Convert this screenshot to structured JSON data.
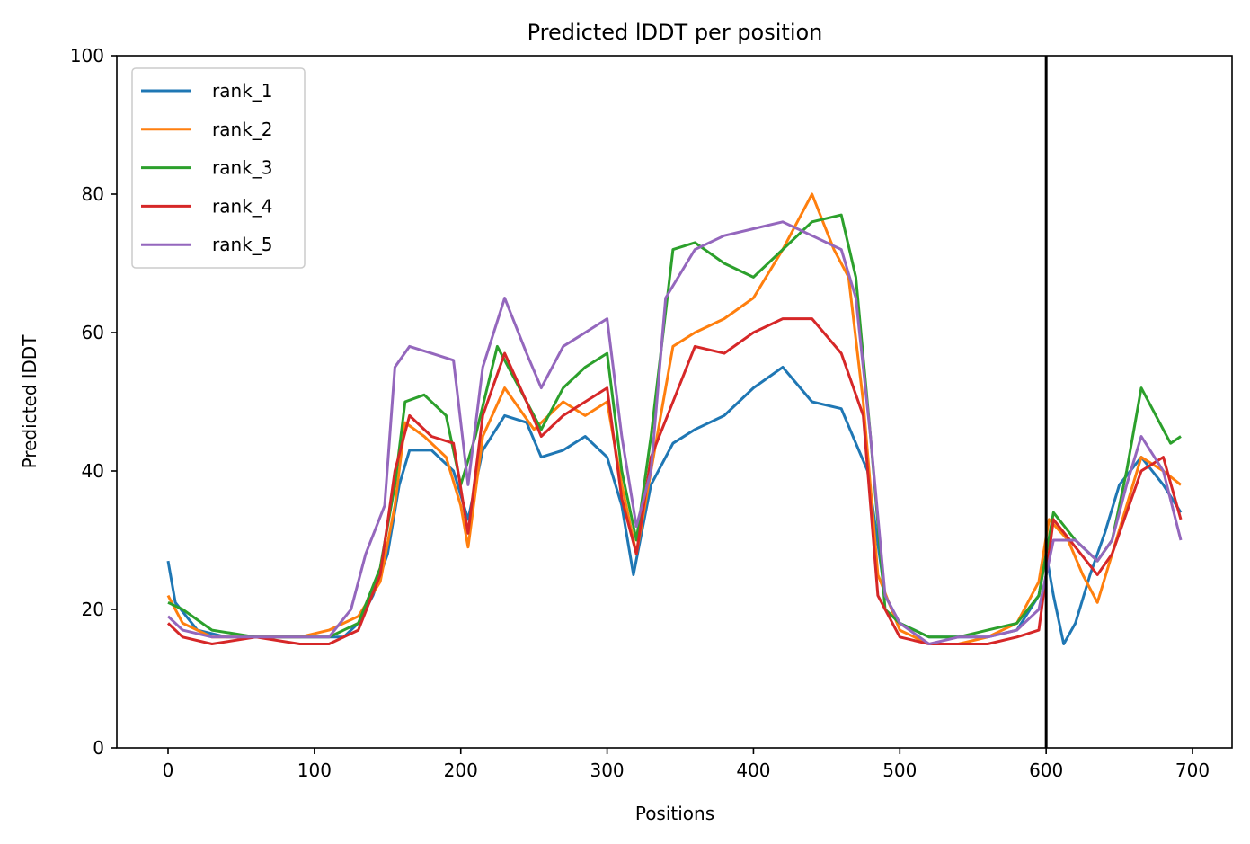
{
  "chart_data": {
    "type": "line",
    "title": "Predicted lDDT per position",
    "xlabel": "Positions",
    "ylabel": "Predicted lDDT",
    "xlim": [
      -35,
      727
    ],
    "ylim": [
      0,
      100
    ],
    "xticks": [
      0,
      100,
      200,
      300,
      400,
      500,
      600,
      700
    ],
    "yticks": [
      0,
      20,
      40,
      60,
      80,
      100
    ],
    "grid": false,
    "legend_position": "top-left",
    "vline_x": 600,
    "series": [
      {
        "name": "rank_1",
        "color": "#1f77b4",
        "points": [
          [
            0,
            27
          ],
          [
            5,
            21
          ],
          [
            20,
            17
          ],
          [
            40,
            16
          ],
          [
            60,
            16
          ],
          [
            80,
            16
          ],
          [
            100,
            16
          ],
          [
            120,
            16
          ],
          [
            130,
            18
          ],
          [
            140,
            22
          ],
          [
            150,
            28
          ],
          [
            158,
            38
          ],
          [
            165,
            43
          ],
          [
            180,
            43
          ],
          [
            195,
            40
          ],
          [
            205,
            33
          ],
          [
            215,
            43
          ],
          [
            230,
            48
          ],
          [
            245,
            47
          ],
          [
            255,
            42
          ],
          [
            270,
            43
          ],
          [
            285,
            45
          ],
          [
            300,
            42
          ],
          [
            310,
            35
          ],
          [
            318,
            25
          ],
          [
            330,
            38
          ],
          [
            345,
            44
          ],
          [
            360,
            46
          ],
          [
            380,
            48
          ],
          [
            400,
            52
          ],
          [
            420,
            55
          ],
          [
            440,
            50
          ],
          [
            460,
            49
          ],
          [
            470,
            44
          ],
          [
            478,
            40
          ],
          [
            490,
            22
          ],
          [
            500,
            18
          ],
          [
            520,
            16
          ],
          [
            540,
            16
          ],
          [
            560,
            16
          ],
          [
            580,
            17
          ],
          [
            595,
            22
          ],
          [
            600,
            28
          ],
          [
            605,
            22
          ],
          [
            612,
            15
          ],
          [
            620,
            18
          ],
          [
            630,
            25
          ],
          [
            640,
            31
          ],
          [
            650,
            38
          ],
          [
            665,
            42
          ],
          [
            680,
            38
          ],
          [
            692,
            34
          ]
        ]
      },
      {
        "name": "rank_2",
        "color": "#ff7f0e",
        "points": [
          [
            0,
            22
          ],
          [
            10,
            18
          ],
          [
            30,
            16
          ],
          [
            60,
            16
          ],
          [
            90,
            16
          ],
          [
            110,
            17
          ],
          [
            130,
            19
          ],
          [
            145,
            24
          ],
          [
            155,
            35
          ],
          [
            162,
            47
          ],
          [
            175,
            45
          ],
          [
            190,
            42
          ],
          [
            200,
            35
          ],
          [
            205,
            29
          ],
          [
            215,
            45
          ],
          [
            230,
            52
          ],
          [
            250,
            46
          ],
          [
            270,
            50
          ],
          [
            285,
            48
          ],
          [
            300,
            50
          ],
          [
            310,
            38
          ],
          [
            320,
            28
          ],
          [
            330,
            40
          ],
          [
            345,
            58
          ],
          [
            360,
            60
          ],
          [
            380,
            62
          ],
          [
            400,
            65
          ],
          [
            420,
            72
          ],
          [
            440,
            80
          ],
          [
            455,
            72
          ],
          [
            465,
            68
          ],
          [
            475,
            50
          ],
          [
            485,
            25
          ],
          [
            500,
            17
          ],
          [
            520,
            15
          ],
          [
            540,
            15
          ],
          [
            560,
            16
          ],
          [
            580,
            18
          ],
          [
            595,
            24
          ],
          [
            602,
            33
          ],
          [
            615,
            30
          ],
          [
            625,
            25
          ],
          [
            635,
            21
          ],
          [
            645,
            28
          ],
          [
            655,
            35
          ],
          [
            665,
            42
          ],
          [
            680,
            40
          ],
          [
            692,
            38
          ]
        ]
      },
      {
        "name": "rank_3",
        "color": "#2ca02c",
        "points": [
          [
            0,
            21
          ],
          [
            10,
            20
          ],
          [
            30,
            17
          ],
          [
            60,
            16
          ],
          [
            90,
            16
          ],
          [
            110,
            16
          ],
          [
            130,
            18
          ],
          [
            145,
            26
          ],
          [
            155,
            38
          ],
          [
            162,
            50
          ],
          [
            175,
            51
          ],
          [
            190,
            48
          ],
          [
            200,
            38
          ],
          [
            210,
            45
          ],
          [
            225,
            58
          ],
          [
            240,
            52
          ],
          [
            255,
            46
          ],
          [
            270,
            52
          ],
          [
            285,
            55
          ],
          [
            300,
            57
          ],
          [
            310,
            40
          ],
          [
            320,
            30
          ],
          [
            330,
            45
          ],
          [
            345,
            72
          ],
          [
            360,
            73
          ],
          [
            380,
            70
          ],
          [
            400,
            68
          ],
          [
            420,
            72
          ],
          [
            440,
            76
          ],
          [
            460,
            77
          ],
          [
            470,
            68
          ],
          [
            480,
            45
          ],
          [
            490,
            20
          ],
          [
            500,
            18
          ],
          [
            520,
            16
          ],
          [
            540,
            16
          ],
          [
            560,
            17
          ],
          [
            580,
            18
          ],
          [
            595,
            22
          ],
          [
            605,
            34
          ],
          [
            620,
            30
          ],
          [
            635,
            27
          ],
          [
            645,
            30
          ],
          [
            655,
            40
          ],
          [
            665,
            52
          ],
          [
            675,
            48
          ],
          [
            685,
            44
          ],
          [
            692,
            45
          ]
        ]
      },
      {
        "name": "rank_4",
        "color": "#d62728",
        "points": [
          [
            0,
            18
          ],
          [
            10,
            16
          ],
          [
            30,
            15
          ],
          [
            60,
            16
          ],
          [
            90,
            15
          ],
          [
            110,
            15
          ],
          [
            130,
            17
          ],
          [
            145,
            25
          ],
          [
            155,
            40
          ],
          [
            165,
            48
          ],
          [
            180,
            45
          ],
          [
            195,
            44
          ],
          [
            205,
            31
          ],
          [
            215,
            48
          ],
          [
            230,
            57
          ],
          [
            245,
            50
          ],
          [
            255,
            45
          ],
          [
            270,
            48
          ],
          [
            285,
            50
          ],
          [
            300,
            52
          ],
          [
            310,
            36
          ],
          [
            320,
            28
          ],
          [
            330,
            42
          ],
          [
            345,
            50
          ],
          [
            360,
            58
          ],
          [
            380,
            57
          ],
          [
            400,
            60
          ],
          [
            420,
            62
          ],
          [
            440,
            62
          ],
          [
            460,
            57
          ],
          [
            475,
            48
          ],
          [
            485,
            22
          ],
          [
            500,
            16
          ],
          [
            520,
            15
          ],
          [
            540,
            15
          ],
          [
            560,
            15
          ],
          [
            580,
            16
          ],
          [
            595,
            17
          ],
          [
            605,
            33
          ],
          [
            620,
            29
          ],
          [
            635,
            25
          ],
          [
            645,
            28
          ],
          [
            655,
            34
          ],
          [
            665,
            40
          ],
          [
            680,
            42
          ],
          [
            692,
            33
          ]
        ]
      },
      {
        "name": "rank_5",
        "color": "#9467bd",
        "points": [
          [
            0,
            19
          ],
          [
            10,
            17
          ],
          [
            30,
            16
          ],
          [
            60,
            16
          ],
          [
            90,
            16
          ],
          [
            110,
            16
          ],
          [
            125,
            20
          ],
          [
            135,
            28
          ],
          [
            148,
            35
          ],
          [
            155,
            55
          ],
          [
            165,
            58
          ],
          [
            180,
            57
          ],
          [
            195,
            56
          ],
          [
            205,
            38
          ],
          [
            215,
            55
          ],
          [
            230,
            65
          ],
          [
            245,
            57
          ],
          [
            255,
            52
          ],
          [
            270,
            58
          ],
          [
            285,
            60
          ],
          [
            300,
            62
          ],
          [
            310,
            45
          ],
          [
            320,
            32
          ],
          [
            330,
            40
          ],
          [
            340,
            65
          ],
          [
            360,
            72
          ],
          [
            380,
            74
          ],
          [
            400,
            75
          ],
          [
            420,
            76
          ],
          [
            440,
            74
          ],
          [
            460,
            72
          ],
          [
            470,
            65
          ],
          [
            480,
            45
          ],
          [
            490,
            22
          ],
          [
            500,
            18
          ],
          [
            520,
            15
          ],
          [
            540,
            16
          ],
          [
            560,
            16
          ],
          [
            580,
            17
          ],
          [
            595,
            20
          ],
          [
            605,
            30
          ],
          [
            620,
            30
          ],
          [
            635,
            27
          ],
          [
            645,
            30
          ],
          [
            655,
            38
          ],
          [
            665,
            45
          ],
          [
            680,
            40
          ],
          [
            692,
            30
          ]
        ]
      }
    ]
  }
}
